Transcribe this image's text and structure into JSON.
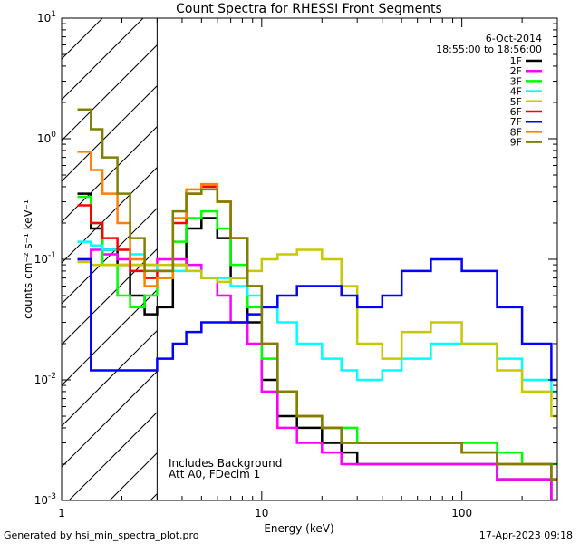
{
  "chart_data": {
    "type": "line",
    "title": "Count Spectra for RHESSI Front Segments",
    "xlabel": "Energy (keV)",
    "ylabel": "counts cm⁻² s⁻¹ keV⁻¹",
    "x_scale": "log",
    "y_scale": "log",
    "xlim": [
      1,
      300
    ],
    "ylim": [
      0.001,
      10
    ],
    "x_ticks": [
      {
        "value": 1,
        "label": "1"
      },
      {
        "value": 10,
        "label": "10"
      },
      {
        "value": 100,
        "label": "100"
      }
    ],
    "y_ticks": [
      {
        "value": 0.001,
        "base": "10",
        "exp": "-3"
      },
      {
        "value": 0.01,
        "base": "10",
        "exp": "-2"
      },
      {
        "value": 0.1,
        "base": "10",
        "exp": "-1"
      },
      {
        "value": 1,
        "base": "10",
        "exp": "0"
      },
      {
        "value": 10,
        "base": "10",
        "exp": "1"
      }
    ],
    "date": "6-Oct-2014",
    "time_range": "18:55:00 to 18:56:00",
    "hatched_region_kev": [
      1,
      3
    ],
    "annotations": [
      "Includes Background",
      "Att A0, FDecim 1"
    ],
    "series": [
      {
        "name": "1F",
        "color": "#000000",
        "energy": [
          1.2,
          1.4,
          1.6,
          1.9,
          2.2,
          2.6,
          3.0,
          3.6,
          4.2,
          5.0,
          6.0,
          7.0,
          8.5,
          10,
          12,
          15,
          20,
          25,
          30,
          40,
          50,
          70,
          100,
          150,
          200,
          280
        ],
        "counts": [
          0.35,
          0.18,
          0.12,
          0.09,
          0.05,
          0.035,
          0.04,
          0.09,
          0.18,
          0.22,
          0.15,
          0.07,
          0.03,
          0.01,
          0.005,
          0.004,
          0.003,
          0.0025,
          0.002,
          0.002,
          0.002,
          0.002,
          0.002,
          0.0015,
          0.0015,
          0.001
        ]
      },
      {
        "name": "2F",
        "color": "#ff00ff",
        "energy": [
          1.2,
          1.4,
          1.6,
          1.9,
          2.2,
          2.6,
          3.0,
          3.6,
          4.2,
          5.0,
          6.0,
          7.0,
          8.5,
          10,
          12,
          15,
          20,
          25,
          30,
          40,
          50,
          70,
          100,
          150,
          200,
          280
        ],
        "counts": [
          0.1,
          0.12,
          0.11,
          0.1,
          0.09,
          0.09,
          0.1,
          0.1,
          0.09,
          0.07,
          0.05,
          0.03,
          0.02,
          0.008,
          0.004,
          0.003,
          0.0025,
          0.002,
          0.002,
          0.002,
          0.002,
          0.002,
          0.002,
          0.0015,
          0.0015,
          0.001
        ]
      },
      {
        "name": "3F",
        "color": "#00ff00",
        "energy": [
          1.2,
          1.4,
          1.6,
          1.9,
          2.2,
          2.6,
          3.0,
          3.6,
          4.2,
          5.0,
          6.0,
          7.0,
          8.5,
          10,
          12,
          15,
          20,
          25,
          30,
          40,
          50,
          70,
          100,
          150,
          200,
          280
        ],
        "counts": [
          0.33,
          0.2,
          0.09,
          0.05,
          0.04,
          0.05,
          0.07,
          0.14,
          0.22,
          0.25,
          0.18,
          0.09,
          0.04,
          0.015,
          0.008,
          0.005,
          0.004,
          0.004,
          0.003,
          0.003,
          0.003,
          0.003,
          0.003,
          0.0025,
          0.002,
          0.002
        ]
      },
      {
        "name": "4F",
        "color": "#00ffff",
        "energy": [
          1.2,
          1.4,
          1.6,
          1.9,
          2.2,
          2.6,
          3.0,
          3.6,
          4.2,
          5.0,
          6.0,
          7.0,
          8.5,
          10,
          12,
          15,
          20,
          25,
          30,
          40,
          50,
          70,
          100,
          150,
          200,
          280
        ],
        "counts": [
          0.14,
          0.13,
          0.12,
          0.12,
          0.11,
          0.09,
          0.08,
          0.08,
          0.08,
          0.07,
          0.07,
          0.06,
          0.05,
          0.04,
          0.03,
          0.02,
          0.015,
          0.012,
          0.01,
          0.012,
          0.015,
          0.02,
          0.02,
          0.015,
          0.01,
          0.008
        ]
      },
      {
        "name": "5F",
        "color": "#c8c800",
        "energy": [
          1.2,
          1.4,
          1.6,
          1.9,
          2.2,
          2.6,
          3.0,
          3.6,
          4.2,
          5.0,
          6.0,
          7.0,
          8.5,
          10,
          12,
          15,
          20,
          25,
          30,
          40,
          50,
          70,
          100,
          150,
          200,
          280
        ],
        "counts": [
          0.095,
          0.09,
          0.09,
          0.09,
          0.09,
          0.09,
          0.09,
          0.09,
          0.08,
          0.07,
          0.065,
          0.07,
          0.08,
          0.1,
          0.11,
          0.12,
          0.1,
          0.06,
          0.02,
          0.015,
          0.025,
          0.03,
          0.02,
          0.012,
          0.008,
          0.005
        ]
      },
      {
        "name": "6F",
        "color": "#ff0000",
        "energy": [
          1.2,
          1.4,
          1.6,
          1.9,
          2.2,
          2.6,
          3.0,
          3.6,
          4.2,
          5.0,
          6.0,
          7.0,
          8.5,
          10,
          12,
          15,
          20,
          25,
          30,
          40,
          50,
          70,
          100,
          150,
          200,
          280
        ],
        "counts": [
          0.28,
          0.2,
          0.15,
          0.12,
          0.08,
          0.07,
          0.08,
          0.2,
          0.35,
          0.4,
          0.3,
          0.15,
          0.06,
          0.02,
          0.008,
          0.005,
          0.004,
          0.003,
          0.003,
          0.003,
          0.003,
          0.003,
          0.0025,
          0.002,
          0.002,
          0.0015
        ]
      },
      {
        "name": "7F",
        "color": "#0000ff",
        "energy": [
          1.2,
          1.4,
          1.6,
          1.9,
          2.2,
          2.6,
          3.0,
          3.6,
          4.2,
          5.0,
          6.0,
          7.0,
          8.5,
          10,
          12,
          15,
          20,
          25,
          30,
          40,
          50,
          70,
          100,
          150,
          200,
          280
        ],
        "counts": [
          0.1,
          0.012,
          0.012,
          0.012,
          0.012,
          0.012,
          0.015,
          0.02,
          0.025,
          0.03,
          0.03,
          0.03,
          0.035,
          0.04,
          0.05,
          0.06,
          0.06,
          0.05,
          0.04,
          0.05,
          0.08,
          0.1,
          0.08,
          0.04,
          0.02,
          0.01
        ]
      },
      {
        "name": "8F",
        "color": "#ff8000",
        "energy": [
          1.2,
          1.4,
          1.6,
          1.9,
          2.2,
          2.6,
          3.0,
          3.6,
          4.2,
          5.0,
          6.0,
          7.0,
          8.5,
          10,
          12,
          15,
          20,
          25,
          30,
          40,
          50,
          70,
          100,
          150,
          200,
          280
        ],
        "counts": [
          0.78,
          0.55,
          0.35,
          0.2,
          0.1,
          0.06,
          0.07,
          0.22,
          0.38,
          0.42,
          0.3,
          0.15,
          0.06,
          0.02,
          0.008,
          0.005,
          0.004,
          0.003,
          0.003,
          0.003,
          0.003,
          0.003,
          0.0025,
          0.002,
          0.002,
          0.0015
        ]
      },
      {
        "name": "9F",
        "color": "#808000",
        "energy": [
          1.2,
          1.4,
          1.6,
          1.9,
          2.2,
          2.6,
          3.0,
          3.6,
          4.2,
          5.0,
          6.0,
          7.0,
          8.5,
          10,
          12,
          15,
          20,
          25,
          30,
          40,
          50,
          70,
          100,
          150,
          200,
          280
        ],
        "counts": [
          1.75,
          1.2,
          0.7,
          0.35,
          0.15,
          0.08,
          0.08,
          0.25,
          0.35,
          0.38,
          0.3,
          0.15,
          0.06,
          0.02,
          0.008,
          0.005,
          0.004,
          0.003,
          0.003,
          0.003,
          0.003,
          0.003,
          0.0025,
          0.002,
          0.002,
          0.0015
        ]
      }
    ]
  },
  "footer": {
    "generated_by": "Generated by hsi_min_spectra_plot.pro",
    "timestamp": "17-Apr-2023 09:18"
  }
}
